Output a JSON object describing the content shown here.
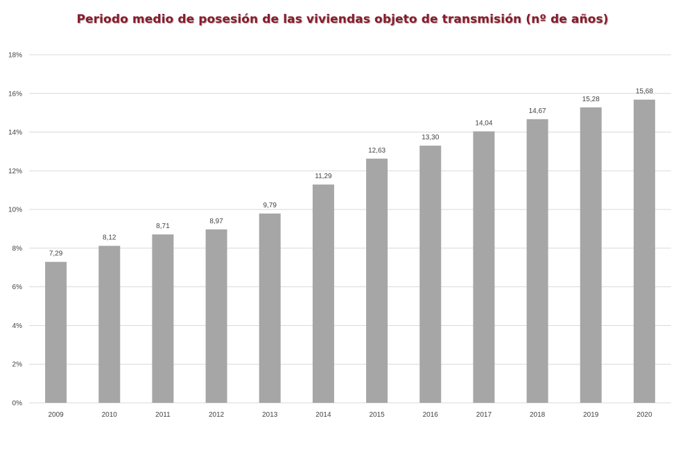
{
  "chart_data": {
    "type": "bar",
    "title": "Periodo medio de posesión de las viviendas objeto de transmisión (nº de años)",
    "xlabel": "",
    "ylabel": "",
    "categories": [
      "2009",
      "2010",
      "2011",
      "2012",
      "2013",
      "2014",
      "2015",
      "2016",
      "2017",
      "2018",
      "2019",
      "2020"
    ],
    "values": [
      7.29,
      8.12,
      8.71,
      8.97,
      9.79,
      11.29,
      12.63,
      13.3,
      14.04,
      14.67,
      15.28,
      15.68
    ],
    "data_labels": [
      "7,29",
      "8,12",
      "8,71",
      "8,97",
      "9,79",
      "11,29",
      "12,63",
      "13,30",
      "14,04",
      "14,67",
      "15,28",
      "15,68"
    ],
    "ylim": [
      0,
      18
    ],
    "yticks": [
      0,
      2,
      4,
      6,
      8,
      10,
      12,
      14,
      16,
      18
    ],
    "ytick_labels": [
      "0%",
      "2%",
      "4%",
      "6%",
      "8%",
      "10%",
      "12%",
      "14%",
      "16%",
      "18%"
    ],
    "grid": true,
    "legend": "none",
    "colors": {
      "bar": "#a6a6a6",
      "grid": "#d9d9d9",
      "title": "#8b1a2b",
      "text": "#404040"
    }
  }
}
